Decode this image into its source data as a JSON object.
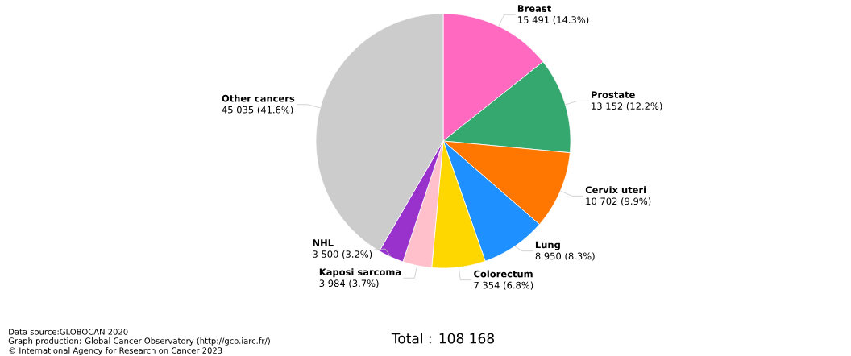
{
  "chart_data": {
    "type": "pie",
    "categories": [
      "Breast",
      "Prostate",
      "Cervix uteri",
      "Lung",
      "Colorectum",
      "Kaposi sarcoma",
      "NHL",
      "Other cancers"
    ],
    "values": [
      15491,
      13152,
      10702,
      8950,
      7354,
      3984,
      3500,
      45035
    ],
    "colors": [
      "#ff69bf",
      "#34a86e",
      "#ff7700",
      "#1e90ff",
      "#ffd700",
      "#ffc0cb",
      "#9932cc",
      "#cccccc"
    ],
    "value_labels": [
      "15 491 (14.3%)",
      "13 152 (12.2%)",
      "10 702 (9.9%)",
      "8 950 (8.3%)",
      "7 354 (6.8%)",
      "3 984 (3.7%)",
      "3 500 (3.2%)",
      "45 035 (41.6%)"
    ],
    "annotations": [
      "Data source:GLOBOCAN 2020",
      "Graph production: Global Cancer Observatory (http://gco.iarc.fr/)",
      "© International Agency for Research on Cancer 2023",
      "Total : 108 168"
    ]
  }
}
